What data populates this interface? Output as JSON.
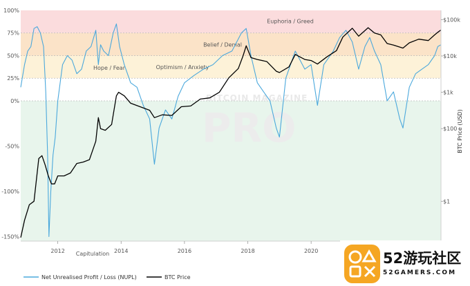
{
  "chart_data": {
    "type": "line",
    "y_left_ticks": [
      "100%",
      "75%",
      "50%",
      "25%",
      "0%",
      "-50%",
      "-100%",
      "-150%"
    ],
    "y_left_tick_values": [
      100,
      75,
      50,
      25,
      0,
      -50,
      -100,
      -150
    ],
    "y_left_range": [
      -155,
      100
    ],
    "y_right_label": "BTC Price (USD)",
    "y_right_ticks": [
      "$100k",
      "$10k",
      "$1k",
      "$100",
      "$1"
    ],
    "y_right_tick_values": [
      100000,
      10000,
      1000,
      100,
      1
    ],
    "y_right_scale": "log",
    "y_right_range": [
      0.08,
      180000
    ],
    "x_ticks": [
      "2012",
      "2014",
      "2016",
      "2018",
      "2020"
    ],
    "x_tick_values": [
      2012,
      2014,
      2016,
      2018,
      2020
    ],
    "x_range": [
      2010.83,
      2024.1
    ],
    "zones": [
      {
        "label": "Euphoria / Greed",
        "from": 75,
        "to": 100,
        "color": "#fbdcdd"
      },
      {
        "label": "Belief / Denial",
        "from": 50,
        "to": 75,
        "color": "#fbe3c8"
      },
      {
        "label": "Optimism / Anxiety",
        "from": 25,
        "to": 50,
        "color": "#fdf2d8"
      },
      {
        "label": "Hope / Fear",
        "from": 0,
        "to": 25,
        "color": "#ffffff"
      },
      {
        "label": "Capitulation",
        "from": -155,
        "to": 0,
        "color": "#e8f5ec"
      }
    ],
    "watermark": {
      "small": "BITCOIN MAGAZINE",
      "big": "PRO"
    },
    "series": [
      {
        "name": "Net Unrealised Profit / Loss (NUPL)",
        "axis": "left",
        "color": "#4aa8dc",
        "x": [
          2010.83,
          2010.95,
          2011.05,
          2011.15,
          2011.25,
          2011.35,
          2011.45,
          2011.55,
          2011.62,
          2011.68,
          2011.72,
          2011.78,
          2011.85,
          2011.92,
          2012.0,
          2012.15,
          2012.3,
          2012.45,
          2012.6,
          2012.75,
          2012.9,
          2013.05,
          2013.2,
          2013.28,
          2013.35,
          2013.45,
          2013.6,
          2013.75,
          2013.85,
          2013.95,
          2014.1,
          2014.3,
          2014.5,
          2014.7,
          2014.9,
          2015.05,
          2015.2,
          2015.4,
          2015.6,
          2015.8,
          2016.0,
          2016.3,
          2016.6,
          2016.9,
          2017.2,
          2017.5,
          2017.8,
          2017.95,
          2018.1,
          2018.3,
          2018.5,
          2018.7,
          2018.9,
          2019.0,
          2019.2,
          2019.5,
          2019.8,
          2020.0,
          2020.2,
          2020.4,
          2020.7,
          2020.9,
          2021.1,
          2021.3,
          2021.5,
          2021.7,
          2021.85,
          2022.0,
          2022.2,
          2022.4,
          2022.6,
          2022.8,
          2022.9,
          2023.1,
          2023.3,
          2023.5,
          2023.7,
          2023.9,
          2024.0,
          2024.1
        ],
        "y": [
          15,
          40,
          55,
          60,
          80,
          82,
          75,
          60,
          10,
          -60,
          -150,
          -100,
          -60,
          -40,
          0,
          40,
          50,
          45,
          30,
          35,
          55,
          60,
          78,
          40,
          62,
          55,
          50,
          75,
          85,
          60,
          40,
          20,
          15,
          -5,
          -20,
          -70,
          -30,
          -10,
          -20,
          5,
          20,
          28,
          35,
          40,
          50,
          55,
          75,
          80,
          50,
          20,
          10,
          0,
          -30,
          -40,
          25,
          55,
          35,
          40,
          -5,
          40,
          55,
          70,
          78,
          65,
          35,
          60,
          70,
          55,
          40,
          0,
          10,
          -20,
          -30,
          15,
          30,
          35,
          40,
          50,
          60,
          62
        ]
      },
      {
        "name": "BTC Price",
        "axis": "right",
        "color": "#000000",
        "x": [
          2010.83,
          2010.95,
          2011.1,
          2011.25,
          2011.4,
          2011.5,
          2011.6,
          2011.7,
          2011.8,
          2011.9,
          2012.0,
          2012.2,
          2012.4,
          2012.6,
          2012.8,
          2013.0,
          2013.2,
          2013.28,
          2013.35,
          2013.5,
          2013.7,
          2013.85,
          2013.92,
          2014.1,
          2014.3,
          2014.6,
          2014.9,
          2015.05,
          2015.3,
          2015.6,
          2015.9,
          2016.2,
          2016.5,
          2016.8,
          2017.1,
          2017.4,
          2017.7,
          2017.85,
          2017.95,
          2018.1,
          2018.3,
          2018.6,
          2018.9,
          2019.0,
          2019.3,
          2019.5,
          2019.8,
          2020.0,
          2020.2,
          2020.5,
          2020.8,
          2021.0,
          2021.3,
          2021.5,
          2021.8,
          2022.0,
          2022.2,
          2022.4,
          2022.6,
          2022.9,
          2023.1,
          2023.4,
          2023.7,
          2023.9,
          2024.0,
          2024.1
        ],
        "y": [
          0.1,
          0.3,
          0.8,
          1,
          15,
          18,
          10,
          5,
          3,
          3,
          5,
          5,
          6,
          11,
          12,
          14,
          45,
          200,
          100,
          90,
          130,
          800,
          1000,
          800,
          500,
          400,
          320,
          200,
          240,
          230,
          400,
          420,
          650,
          700,
          1000,
          2500,
          4500,
          10000,
          19000,
          9000,
          8000,
          7000,
          3800,
          3500,
          5000,
          11000,
          8000,
          7500,
          6000,
          9500,
          14000,
          33000,
          58000,
          35000,
          60000,
          43000,
          38000,
          22000,
          20000,
          16500,
          23000,
          29000,
          26500,
          38000,
          45000,
          52000
        ]
      }
    ],
    "legend": [
      "Net Unrealised Profit / Loss (NUPL)",
      "BTC Price"
    ],
    "legend_position": "bottom-left"
  },
  "badge": {
    "logo_text_cn": "52游玩社区",
    "logo_text_en": "52GAMERS.COM",
    "accent_colors": [
      "#f5a623",
      "#4aa8dc"
    ]
  }
}
